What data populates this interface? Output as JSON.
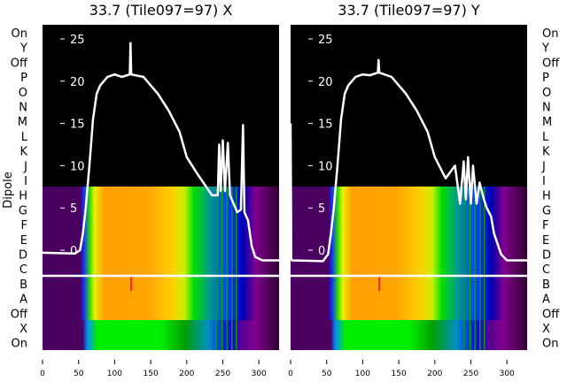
{
  "chart_data": [
    {
      "type": "line",
      "title": "33.7 (Tile097=97) X",
      "ylabel": "Dipole",
      "row_labels": [
        "On",
        "Y",
        "Off",
        "P",
        "O",
        "N",
        "M",
        "L",
        "K",
        "J",
        "I",
        "H",
        "G",
        "F",
        "E",
        "D",
        "C",
        "B",
        "A",
        "Off",
        "X",
        "On"
      ],
      "xticks": [
        0,
        50,
        100,
        150,
        200,
        250,
        300
      ],
      "yticks": [
        0,
        5,
        10,
        15,
        20,
        25
      ],
      "xlim": [
        0,
        328
      ],
      "ylim": [
        -3,
        26.5
      ],
      "series": [
        {
          "name": "X",
          "x": [
            0,
            45,
            52,
            56,
            60,
            65,
            70,
            75,
            80,
            90,
            100,
            110,
            121,
            122,
            123,
            140,
            150,
            160,
            175,
            190,
            200,
            215,
            235,
            243,
            245,
            247,
            250,
            253,
            257,
            260,
            265,
            270,
            275,
            278,
            280,
            285,
            290,
            295,
            305,
            328
          ],
          "y": [
            -0.3,
            -0.4,
            0,
            2,
            5,
            10,
            15.5,
            18.5,
            19.5,
            20.5,
            20.8,
            20.5,
            20.8,
            24.5,
            20.8,
            20.5,
            19.5,
            18.5,
            16.5,
            14,
            11,
            9,
            6.5,
            6.5,
            12.5,
            7,
            13,
            7,
            12.7,
            6.5,
            5.5,
            4.5,
            4.8,
            14.8,
            4.5,
            3.5,
            0.5,
            -0.8,
            -1.2,
            -1.2
          ]
        }
      ]
    },
    {
      "type": "line",
      "title": "33.7 (Tile097=97) Y",
      "row_labels": [
        "On",
        "Y",
        "Off",
        "P",
        "O",
        "N",
        "M",
        "L",
        "K",
        "J",
        "I",
        "H",
        "G",
        "F",
        "E",
        "D",
        "C",
        "B",
        "A",
        "Off",
        "X",
        "On"
      ],
      "xticks": [
        0,
        50,
        100,
        150,
        200,
        250,
        300
      ],
      "yticks": [
        0,
        5,
        10,
        15,
        20,
        25
      ],
      "xlim": [
        0,
        328
      ],
      "ylim": [
        -3,
        26.5
      ],
      "series": [
        {
          "name": "Y",
          "x": [
            0,
            1,
            2,
            45,
            52,
            56,
            60,
            65,
            70,
            75,
            80,
            90,
            100,
            110,
            121,
            122,
            123,
            140,
            150,
            160,
            175,
            190,
            200,
            215,
            228,
            235,
            240,
            243,
            246,
            250,
            253,
            258,
            262,
            268,
            272,
            278,
            282,
            288,
            292,
            300,
            328
          ],
          "y": [
            15,
            -1,
            -1.2,
            -1.3,
            -0.5,
            2,
            5,
            10,
            15.5,
            18.5,
            19.5,
            20.5,
            20.8,
            20.7,
            21,
            22.5,
            21,
            20.5,
            19.5,
            18.5,
            16.5,
            14,
            11,
            8.5,
            10,
            5.5,
            10.5,
            6,
            11,
            5.5,
            10,
            5.5,
            8,
            6,
            5,
            4,
            2,
            0.5,
            -0.5,
            -1.2,
            -1.2
          ]
        }
      ]
    }
  ]
}
